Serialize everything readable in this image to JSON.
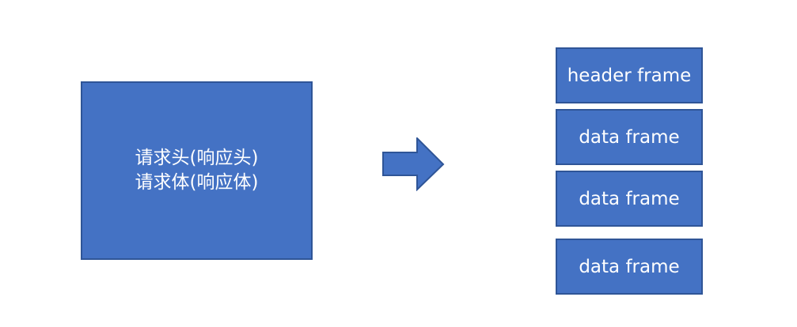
{
  "source": {
    "lines": [
      "请求头(响应头)",
      "请求体(响应体)"
    ]
  },
  "frames": [
    {
      "label": "header frame"
    },
    {
      "label": "data frame"
    },
    {
      "label": "data frame"
    },
    {
      "label": "data frame"
    }
  ],
  "colors": {
    "fill": "#4472c4",
    "border": "#2f5597",
    "text": "#ffffff",
    "background": "#ffffff"
  }
}
